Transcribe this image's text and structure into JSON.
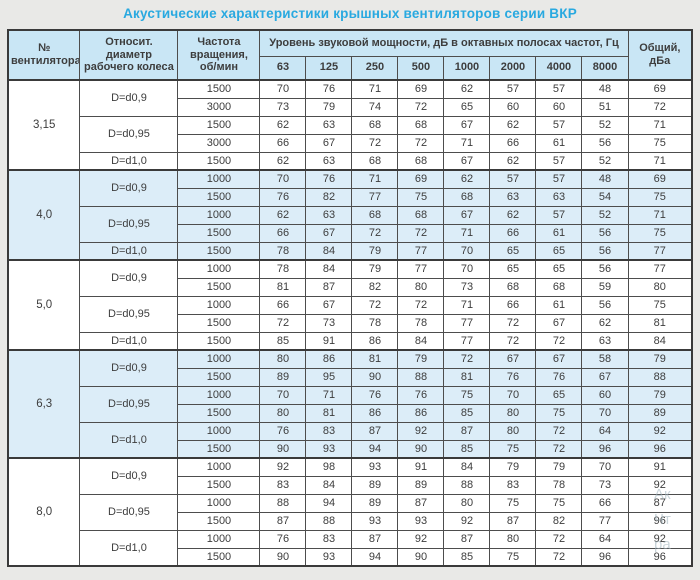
{
  "title": "Акустические характеристики крышных вентиляторов серии ВКР",
  "colors": {
    "accent": "#29a9e0",
    "header_bg": "#c9e6f5",
    "shaded_row_bg": "#dcedf8",
    "border": "#4d4d4d",
    "page_bg": "#e9e9e7",
    "text": "#3d3d3d"
  },
  "table": {
    "headers": {
      "fan_number": "№ вентилятора",
      "diameter": "Относит. диаметр рабочего колеса",
      "speed": "Частота вращения, об/мин",
      "spl_group": "Уровень звуковой мощности, дБ в октавных полосах частот, Гц",
      "frequencies": [
        "63",
        "125",
        "250",
        "500",
        "1000",
        "2000",
        "4000",
        "8000"
      ],
      "total": "Общий, дБа"
    },
    "groups": [
      {
        "fan": "3,15",
        "shaded": false,
        "subgroups": [
          {
            "diameter": "D=d0,9",
            "rows": [
              {
                "speed": "1500",
                "values": [
                  70,
                  76,
                  71,
                  69,
                  62,
                  57,
                  57,
                  48
                ],
                "total": 69
              },
              {
                "speed": "3000",
                "values": [
                  73,
                  79,
                  74,
                  72,
                  65,
                  60,
                  60,
                  51
                ],
                "total": 72
              }
            ]
          },
          {
            "diameter": "D=d0,95",
            "rows": [
              {
                "speed": "1500",
                "values": [
                  62,
                  63,
                  68,
                  68,
                  67,
                  62,
                  57,
                  52
                ],
                "total": 71
              },
              {
                "speed": "3000",
                "values": [
                  66,
                  67,
                  72,
                  72,
                  71,
                  66,
                  61,
                  56
                ],
                "total": 75
              }
            ]
          },
          {
            "diameter": "D=d1,0",
            "rows": [
              {
                "speed": "1500",
                "values": [
                  62,
                  63,
                  68,
                  68,
                  67,
                  62,
                  57,
                  52
                ],
                "total": 71
              }
            ]
          }
        ]
      },
      {
        "fan": "4,0",
        "shaded": true,
        "subgroups": [
          {
            "diameter": "D=d0,9",
            "rows": [
              {
                "speed": "1000",
                "values": [
                  70,
                  76,
                  71,
                  69,
                  62,
                  57,
                  57,
                  48
                ],
                "total": 69
              },
              {
                "speed": "1500",
                "values": [
                  76,
                  82,
                  77,
                  75,
                  68,
                  63,
                  63,
                  54
                ],
                "total": 75
              }
            ]
          },
          {
            "diameter": "D=d0,95",
            "rows": [
              {
                "speed": "1000",
                "values": [
                  62,
                  63,
                  68,
                  68,
                  67,
                  62,
                  57,
                  52
                ],
                "total": 71
              },
              {
                "speed": "1500",
                "values": [
                  66,
                  67,
                  72,
                  72,
                  71,
                  66,
                  61,
                  56
                ],
                "total": 75
              }
            ]
          },
          {
            "diameter": "D=d1,0",
            "rows": [
              {
                "speed": "1500",
                "values": [
                  78,
                  84,
                  79,
                  77,
                  70,
                  65,
                  65,
                  56
                ],
                "total": 77
              }
            ]
          }
        ]
      },
      {
        "fan": "5,0",
        "shaded": false,
        "subgroups": [
          {
            "diameter": "D=d0,9",
            "rows": [
              {
                "speed": "1000",
                "values": [
                  78,
                  84,
                  79,
                  77,
                  70,
                  65,
                  65,
                  56
                ],
                "total": 77
              },
              {
                "speed": "1500",
                "values": [
                  81,
                  87,
                  82,
                  80,
                  73,
                  68,
                  68,
                  59
                ],
                "total": 80
              }
            ]
          },
          {
            "diameter": "D=d0,95",
            "rows": [
              {
                "speed": "1000",
                "values": [
                  66,
                  67,
                  72,
                  72,
                  71,
                  66,
                  61,
                  56
                ],
                "total": 75
              },
              {
                "speed": "1500",
                "values": [
                  72,
                  73,
                  78,
                  78,
                  77,
                  72,
                  67,
                  62
                ],
                "total": 81
              }
            ]
          },
          {
            "diameter": "D=d1,0",
            "rows": [
              {
                "speed": "1500",
                "values": [
                  85,
                  91,
                  86,
                  84,
                  77,
                  72,
                  72,
                  63
                ],
                "total": 84
              }
            ]
          }
        ]
      },
      {
        "fan": "6,3",
        "shaded": true,
        "subgroups": [
          {
            "diameter": "D=d0,9",
            "rows": [
              {
                "speed": "1000",
                "values": [
                  80,
                  86,
                  81,
                  79,
                  72,
                  67,
                  67,
                  58
                ],
                "total": 79
              },
              {
                "speed": "1500",
                "values": [
                  89,
                  95,
                  90,
                  88,
                  81,
                  76,
                  76,
                  67
                ],
                "total": 88
              }
            ]
          },
          {
            "diameter": "D=d0,95",
            "rows": [
              {
                "speed": "1000",
                "values": [
                  70,
                  71,
                  76,
                  76,
                  75,
                  70,
                  65,
                  60
                ],
                "total": 79
              },
              {
                "speed": "1500",
                "values": [
                  80,
                  81,
                  86,
                  86,
                  85,
                  80,
                  75,
                  70
                ],
                "total": 89
              }
            ]
          },
          {
            "diameter": "D=d1,0",
            "rows": [
              {
                "speed": "1000",
                "values": [
                  76,
                  83,
                  87,
                  92,
                  87,
                  80,
                  72,
                  64
                ],
                "total": 92
              },
              {
                "speed": "1500",
                "values": [
                  90,
                  93,
                  94,
                  90,
                  85,
                  75,
                  72,
                  96
                ],
                "total": 96
              }
            ]
          }
        ]
      },
      {
        "fan": "8,0",
        "shaded": false,
        "subgroups": [
          {
            "diameter": "D=d0,9",
            "rows": [
              {
                "speed": "1000",
                "values": [
                  92,
                  98,
                  93,
                  91,
                  84,
                  79,
                  79,
                  70
                ],
                "total": 91
              },
              {
                "speed": "1500",
                "values": [
                  83,
                  84,
                  89,
                  89,
                  88,
                  83,
                  78,
                  73
                ],
                "total": 92
              }
            ]
          },
          {
            "diameter": "D=d0,95",
            "rows": [
              {
                "speed": "1000",
                "values": [
                  88,
                  94,
                  89,
                  87,
                  80,
                  75,
                  75,
                  66
                ],
                "total": 87
              },
              {
                "speed": "1500",
                "values": [
                  87,
                  88,
                  93,
                  93,
                  92,
                  87,
                  82,
                  77
                ],
                "total": 96
              }
            ]
          },
          {
            "diameter": "D=d1,0",
            "rows": [
              {
                "speed": "1000",
                "values": [
                  76,
                  83,
                  87,
                  92,
                  87,
                  80,
                  72,
                  64
                ],
                "total": 92
              },
              {
                "speed": "1500",
                "values": [
                  90,
                  93,
                  94,
                  90,
                  85,
                  75,
                  72,
                  96
                ],
                "total": 96
              }
            ]
          }
        ]
      }
    ]
  },
  "watermark": {
    "fragments": [
      "Ак",
      "Чт",
      "ра"
    ]
  }
}
